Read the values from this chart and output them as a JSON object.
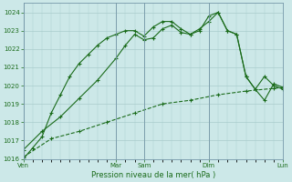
{
  "title": "",
  "xlabel": "Pression niveau de la mer( hPa )",
  "background_color": "#cce8e8",
  "grid_color": "#aacccc",
  "line_color": "#1a6b1a",
  "ylim": [
    1016,
    1024.5
  ],
  "yticks": [
    1016,
    1017,
    1018,
    1019,
    1020,
    1021,
    1022,
    1023,
    1024
  ],
  "xtick_labels": [
    "Ven",
    "",
    "Mar",
    "Sam",
    "",
    "Dim",
    "",
    "Lun"
  ],
  "xtick_positions": [
    0,
    5,
    10,
    13,
    17,
    20,
    25,
    28
  ],
  "line1_x": [
    0,
    1,
    2,
    3,
    4,
    5,
    6,
    7,
    8,
    9,
    10,
    11,
    12,
    13,
    14,
    15,
    16,
    17,
    18,
    19,
    20,
    21,
    22,
    23,
    24,
    25,
    26,
    27,
    28
  ],
  "line1": [
    1016.0,
    1016.6,
    1017.2,
    1018.5,
    1019.5,
    1020.5,
    1021.2,
    1021.7,
    1022.2,
    1022.6,
    1022.8,
    1023.0,
    1023.0,
    1022.7,
    1023.2,
    1023.5,
    1023.5,
    1023.1,
    1022.8,
    1023.0,
    1023.8,
    1024.0,
    1023.0,
    1022.8,
    1020.5,
    1019.8,
    1019.2,
    1020.1,
    1019.9
  ],
  "line2_x": [
    0,
    2,
    4,
    6,
    8,
    10,
    11,
    12,
    13,
    14,
    15,
    16,
    17,
    18,
    19,
    20,
    21,
    22,
    23,
    24,
    25,
    26,
    27,
    28
  ],
  "line2": [
    1016.5,
    1017.5,
    1018.3,
    1019.3,
    1020.3,
    1021.5,
    1022.2,
    1022.8,
    1022.5,
    1022.6,
    1023.1,
    1023.3,
    1022.9,
    1022.8,
    1023.1,
    1023.5,
    1024.0,
    1023.0,
    1022.8,
    1020.5,
    1019.8,
    1020.5,
    1020.0,
    1019.8
  ],
  "line3_x": [
    0,
    3,
    6,
    9,
    12,
    15,
    18,
    21,
    24,
    27,
    28
  ],
  "line3": [
    1016.1,
    1017.1,
    1017.5,
    1018.0,
    1018.5,
    1019.0,
    1019.2,
    1019.5,
    1019.7,
    1019.85,
    1019.9
  ],
  "n_points": 29,
  "vline_positions": [
    0,
    10,
    13,
    20,
    28
  ]
}
